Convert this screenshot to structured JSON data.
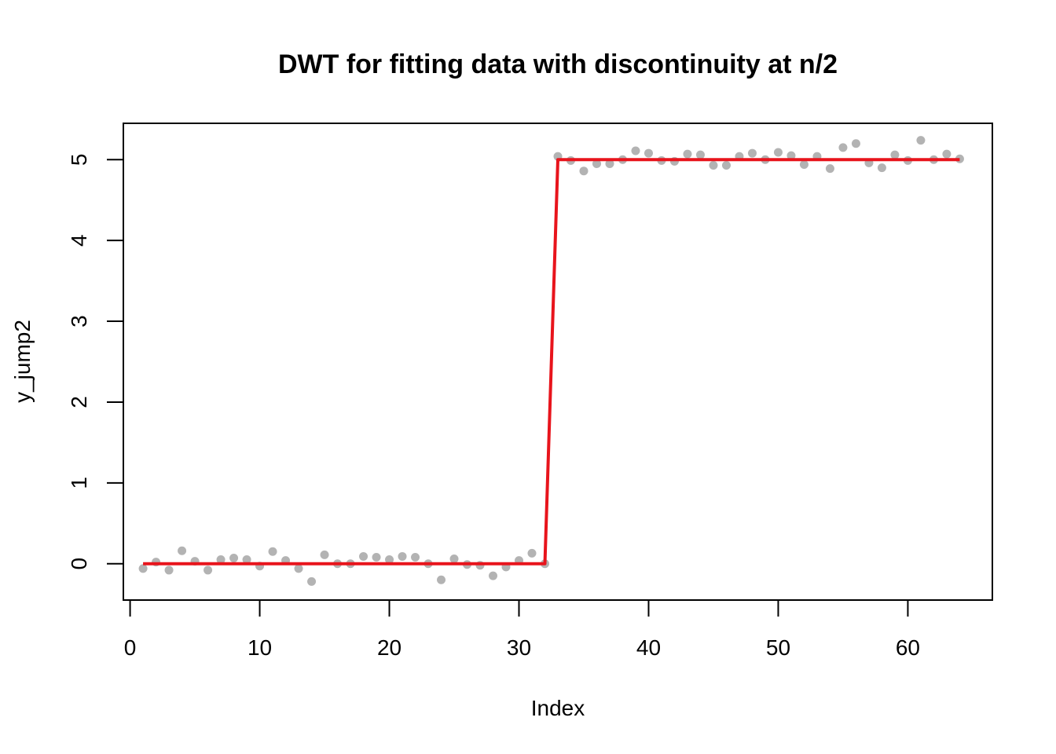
{
  "chart_data": {
    "type": "scatter",
    "title": "DWT for fitting data with discontinuity at n/2",
    "xlabel": "Index",
    "ylabel": "y_jump2",
    "xlim": [
      -0.52,
      66.52
    ],
    "ylim": [
      -0.45,
      5.45
    ],
    "x_ticks": [
      0,
      10,
      20,
      30,
      40,
      50,
      60
    ],
    "y_ticks": [
      0,
      1,
      2,
      3,
      4,
      5
    ],
    "grid": false,
    "legend": "none",
    "series": [
      {
        "type": "scatter",
        "color": "#b3b3b3",
        "x": [
          1,
          2,
          3,
          4,
          5,
          6,
          7,
          8,
          9,
          10,
          11,
          12,
          13,
          14,
          15,
          16,
          17,
          18,
          19,
          20,
          21,
          22,
          23,
          24,
          25,
          26,
          27,
          28,
          29,
          30,
          31,
          32,
          33,
          34,
          35,
          36,
          37,
          38,
          39,
          40,
          41,
          42,
          43,
          44,
          45,
          46,
          47,
          48,
          49,
          50,
          51,
          52,
          53,
          54,
          55,
          56,
          57,
          58,
          59,
          60,
          61,
          62,
          63,
          64
        ],
        "y": [
          -0.06,
          0.02,
          -0.08,
          0.16,
          0.03,
          -0.08,
          0.05,
          0.07,
          0.05,
          -0.03,
          0.15,
          0.04,
          -0.06,
          -0.22,
          0.11,
          0.0,
          0.0,
          0.09,
          0.08,
          0.05,
          0.09,
          0.08,
          0.0,
          -0.2,
          0.06,
          -0.01,
          -0.02,
          -0.15,
          -0.04,
          0.04,
          0.13,
          0.0,
          5.04,
          4.99,
          4.86,
          4.95,
          4.95,
          5.0,
          5.11,
          5.08,
          4.99,
          4.98,
          5.07,
          5.06,
          4.93,
          4.93,
          5.04,
          5.08,
          5.0,
          5.09,
          5.05,
          4.94,
          5.04,
          4.89,
          5.15,
          5.2,
          4.96,
          4.9,
          5.06,
          4.99,
          5.24,
          5.0,
          5.07,
          5.01
        ]
      },
      {
        "type": "line",
        "color": "#e8141c",
        "x": [
          1,
          32,
          33,
          64
        ],
        "y": [
          0.0,
          0.0,
          5.0,
          5.0
        ]
      }
    ]
  }
}
